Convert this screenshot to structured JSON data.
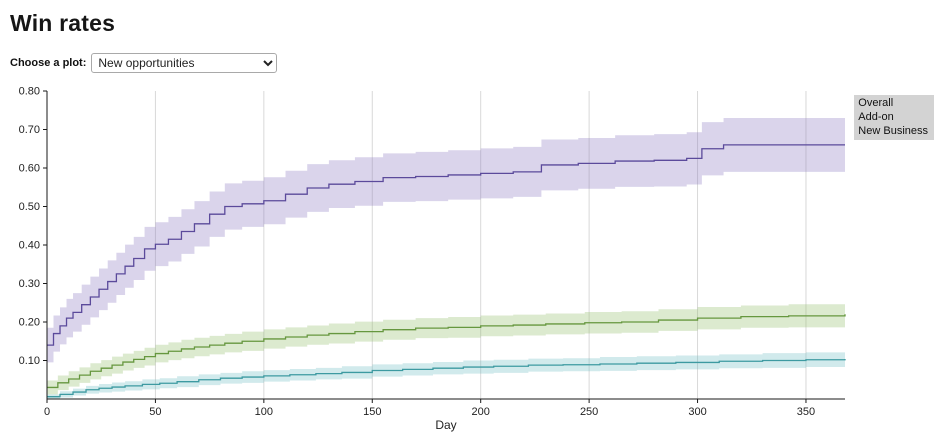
{
  "page": {
    "title": "Win rates"
  },
  "controls": {
    "plot_select_label": "Choose a plot:",
    "plot_select_value": "New opportunities",
    "plot_options": [
      "New opportunities"
    ]
  },
  "chart_data": {
    "type": "line",
    "subtype": "step-with-confidence-bands",
    "title": "Win rates",
    "xlabel": "Day",
    "ylabel": "",
    "xlim": [
      0,
      368
    ],
    "ylim": [
      0,
      0.8
    ],
    "x_ticks": [
      0,
      50,
      100,
      150,
      200,
      250,
      300,
      350
    ],
    "y_ticks": [
      0.1,
      0.2,
      0.3,
      0.4,
      0.5,
      0.6,
      0.7,
      0.8
    ],
    "grid": "vertical",
    "grid_color": "#d8d8d8",
    "axis_color": "#1a1a1a",
    "legend": {
      "position": "top-right",
      "background": "#d3d3d3",
      "entries": [
        "Overall",
        "Add-on",
        "New Business"
      ]
    },
    "series": [
      {
        "name": "Overall",
        "color": "#5b4a9b",
        "band_color": "#8d78c0",
        "band_opacity": 0.32,
        "x": [
          0,
          3,
          6,
          9,
          12,
          16,
          20,
          24,
          28,
          32,
          36,
          40,
          45,
          50,
          56,
          62,
          68,
          75,
          82,
          90,
          100,
          110,
          120,
          130,
          142,
          155,
          170,
          185,
          200,
          215,
          228,
          245,
          262,
          280,
          295,
          302,
          312,
          340,
          368
        ],
        "y": [
          0.14,
          0.17,
          0.19,
          0.21,
          0.225,
          0.245,
          0.265,
          0.285,
          0.305,
          0.325,
          0.345,
          0.365,
          0.39,
          0.402,
          0.415,
          0.435,
          0.455,
          0.48,
          0.5,
          0.507,
          0.515,
          0.532,
          0.548,
          0.558,
          0.565,
          0.575,
          0.578,
          0.582,
          0.586,
          0.59,
          0.608,
          0.612,
          0.618,
          0.62,
          0.625,
          0.65,
          0.66,
          0.66,
          0.66
        ],
        "w": [
          0.045,
          0.047,
          0.048,
          0.05,
          0.05,
          0.052,
          0.053,
          0.054,
          0.055,
          0.055,
          0.056,
          0.056,
          0.057,
          0.057,
          0.058,
          0.058,
          0.059,
          0.059,
          0.06,
          0.06,
          0.061,
          0.061,
          0.062,
          0.062,
          0.063,
          0.063,
          0.064,
          0.064,
          0.065,
          0.065,
          0.066,
          0.066,
          0.067,
          0.068,
          0.068,
          0.069,
          0.07,
          0.07,
          0.072
        ]
      },
      {
        "name": "Add-on",
        "color": "#66973f",
        "band_color": "#93bf6a",
        "band_opacity": 0.32,
        "x": [
          0,
          5,
          10,
          15,
          20,
          25,
          30,
          35,
          40,
          45,
          50,
          56,
          62,
          68,
          75,
          82,
          90,
          100,
          110,
          120,
          130,
          142,
          155,
          170,
          185,
          200,
          215,
          230,
          248,
          265,
          282,
          300,
          320,
          342,
          368
        ],
        "y": [
          0.03,
          0.042,
          0.052,
          0.062,
          0.072,
          0.08,
          0.088,
          0.096,
          0.103,
          0.11,
          0.118,
          0.124,
          0.13,
          0.135,
          0.14,
          0.145,
          0.15,
          0.156,
          0.161,
          0.166,
          0.17,
          0.175,
          0.18,
          0.184,
          0.186,
          0.19,
          0.192,
          0.195,
          0.198,
          0.2,
          0.205,
          0.21,
          0.214,
          0.216,
          0.22
        ],
        "w": [
          0.018,
          0.019,
          0.02,
          0.02,
          0.021,
          0.021,
          0.022,
          0.022,
          0.022,
          0.023,
          0.023,
          0.023,
          0.024,
          0.024,
          0.024,
          0.024,
          0.025,
          0.025,
          0.025,
          0.025,
          0.026,
          0.026,
          0.026,
          0.026,
          0.027,
          0.027,
          0.027,
          0.027,
          0.028,
          0.028,
          0.028,
          0.029,
          0.029,
          0.03,
          0.03
        ]
      },
      {
        "name": "New Business",
        "color": "#3d9aa1",
        "band_color": "#6fbdc4",
        "band_opacity": 0.32,
        "x": [
          0,
          6,
          12,
          18,
          24,
          30,
          36,
          44,
          52,
          60,
          70,
          80,
          90,
          100,
          112,
          124,
          136,
          150,
          164,
          178,
          192,
          206,
          222,
          238,
          255,
          272,
          290,
          310,
          330,
          350,
          368
        ],
        "y": [
          0.006,
          0.012,
          0.018,
          0.024,
          0.028,
          0.031,
          0.034,
          0.038,
          0.041,
          0.045,
          0.05,
          0.054,
          0.057,
          0.06,
          0.063,
          0.066,
          0.069,
          0.074,
          0.077,
          0.08,
          0.083,
          0.085,
          0.088,
          0.089,
          0.091,
          0.093,
          0.095,
          0.098,
          0.1,
          0.102,
          0.104
        ],
        "w": [
          0.006,
          0.008,
          0.009,
          0.01,
          0.011,
          0.012,
          0.012,
          0.013,
          0.013,
          0.014,
          0.014,
          0.014,
          0.015,
          0.015,
          0.015,
          0.015,
          0.016,
          0.016,
          0.016,
          0.016,
          0.017,
          0.017,
          0.017,
          0.017,
          0.018,
          0.018,
          0.018,
          0.018,
          0.019,
          0.019,
          0.02
        ]
      }
    ]
  }
}
